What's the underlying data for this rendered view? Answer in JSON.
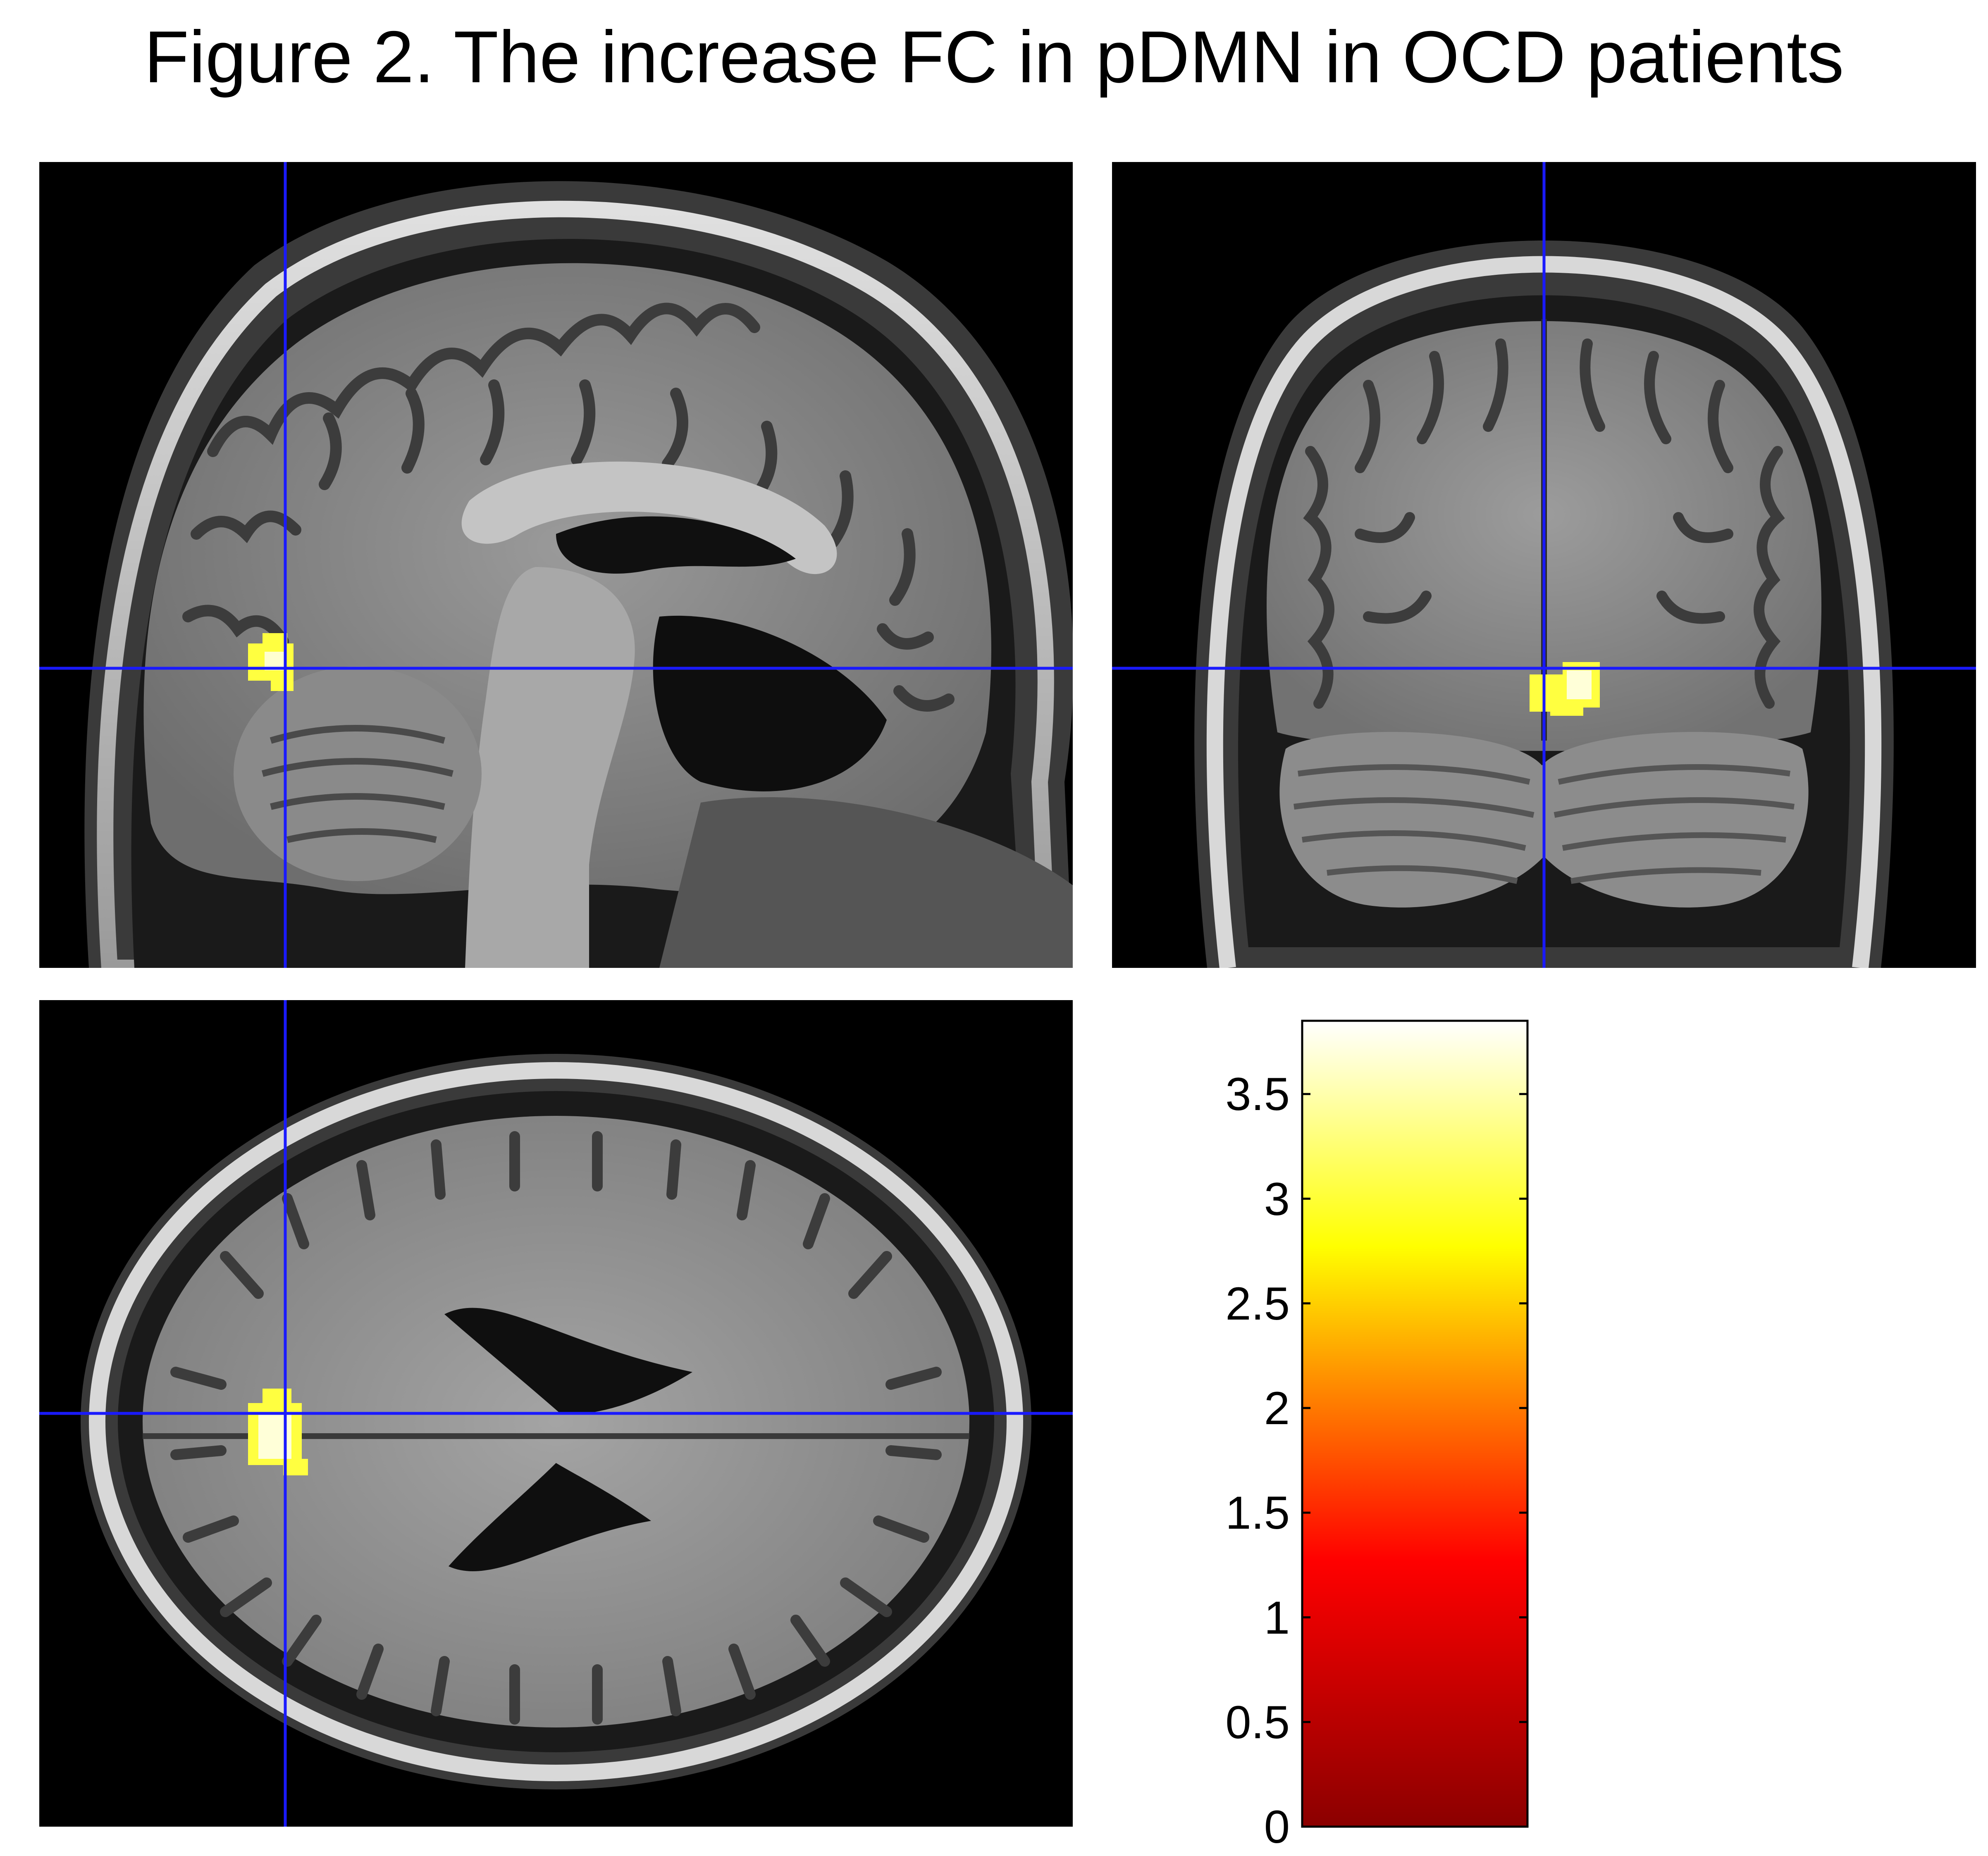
{
  "title": "Figure 2. The increase FC in pDMN in OCD patients",
  "colors": {
    "background": "#000000",
    "crosshair": "#1a1aff",
    "cluster": "#ffff40",
    "cluster_core": "#ffffd8"
  },
  "colorbar": {
    "ticks": [
      "0",
      "0.5",
      "1",
      "1.5",
      "2",
      "2.5",
      "3",
      "3.5"
    ],
    "tick_values": [
      0,
      0.5,
      1,
      1.5,
      2,
      2.5,
      3,
      3.5
    ],
    "range": [
      0,
      3.85
    ],
    "colormap": [
      "#8b0000",
      "#ff0000",
      "#ff8c00",
      "#ffff00",
      "#ffffff"
    ]
  }
}
